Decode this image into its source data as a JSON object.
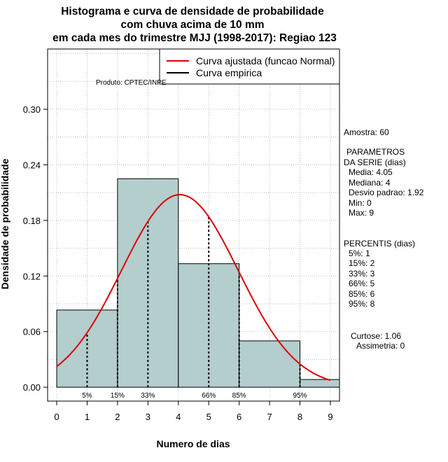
{
  "chart_data": {
    "type": "bar",
    "title_lines": [
      "Histograma e curva de densidade de probabilidade",
      "com chuva acima de 10 mm",
      "em cada mes do trimestre MJJ (1998-2017): Regiao 123"
    ],
    "xlabel": "Numero de dias",
    "ylabel": "Densidade de probabilidade",
    "xlim": [
      -0.3,
      9.3
    ],
    "ylim": [
      -0.015,
      0.365
    ],
    "x_ticks": [
      "0",
      "1",
      "2",
      "3",
      "4",
      "5",
      "6",
      "7",
      "8",
      "9"
    ],
    "y_ticks": [
      "0.00",
      "0.06",
      "0.12",
      "0.18",
      "0.24",
      "0.30"
    ],
    "bins": [
      {
        "start": 0,
        "end": 2,
        "density": 0.0833
      },
      {
        "start": 2,
        "end": 4,
        "density": 0.225
      },
      {
        "start": 4,
        "end": 6,
        "density": 0.1333
      },
      {
        "start": 6,
        "end": 8,
        "density": 0.05
      },
      {
        "start": 8,
        "end": 10,
        "density": 0.0083
      }
    ],
    "normal_curve": {
      "mean": 4.05,
      "sd": 1.92,
      "x_range": [
        0,
        9
      ],
      "color": "#dd0000"
    },
    "percentiles": [
      {
        "label": "5%",
        "x": 1
      },
      {
        "label": "15%",
        "x": 2
      },
      {
        "label": "33%",
        "x": 3
      },
      {
        "label": "66%",
        "x": 5
      },
      {
        "label": "85%",
        "x": 6
      },
      {
        "label": "95%",
        "x": 8
      }
    ],
    "legend": {
      "fitted": "Curva ajustada (funcao Normal)",
      "empirical": "Curva empirica"
    },
    "colors": {
      "bar_fill": "#b4cdcd",
      "curve": "#dd0000",
      "grid": "#bbbbbb"
    }
  },
  "source": "Produto: CPTEC/INPE",
  "stats": {
    "amostra": "Amostra: 60",
    "param_header_1": "PARAMETROS",
    "param_header_2": "DA SERIE (dias)",
    "media": "Media: 4.05",
    "mediana": "Mediana: 4",
    "desvio": "Desvio padrao: 1.92",
    "min": "Min: 0",
    "max": "Max: 9",
    "percentis_header": "PERCENTIS (dias)",
    "p5": "5%: 1",
    "p15": "15%: 2",
    "p33": "33%: 3",
    "p66": "66%: 5",
    "p85": "85%: 6",
    "p95": "95%: 8",
    "curtose": "Curtose: 1.06",
    "assimetria": "Assimetria: 0"
  }
}
